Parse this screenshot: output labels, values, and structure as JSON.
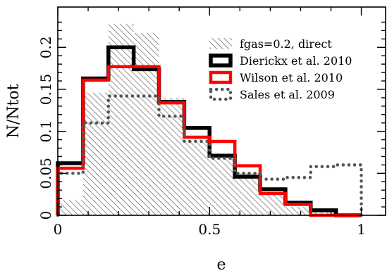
{
  "chart_data": {
    "type": "histogram",
    "xlabel": "e",
    "ylabel": "N/Ntot",
    "xlim": [
      0,
      1.08
    ],
    "ylim": [
      0,
      0.248
    ],
    "x_ticks": [
      {
        "value": 0,
        "label": "0"
      },
      {
        "value": 0.5,
        "label": "0.5"
      },
      {
        "value": 1,
        "label": "1"
      }
    ],
    "y_ticks": [
      {
        "value": 0,
        "label": "0"
      },
      {
        "value": 0.05,
        "label": "0.05"
      },
      {
        "value": 0.1,
        "label": "0.1"
      },
      {
        "value": 0.15,
        "label": "0.15"
      },
      {
        "value": 0.2,
        "label": "0.2"
      }
    ],
    "bin_edges": [
      0,
      0.0833,
      0.1667,
      0.25,
      0.3333,
      0.4167,
      0.5,
      0.5833,
      0.6667,
      0.75,
      0.8333,
      0.9167,
      1.0
    ],
    "legend_position": "top-right",
    "series": [
      {
        "name": "fgas=0.2, direct",
        "style": "hatched",
        "color": "#555555",
        "values": [
          0.018,
          0.146,
          0.228,
          0.217,
          0.14,
          0.09,
          0.071,
          0.05,
          0.025,
          0.01,
          0.004,
          0.0
        ]
      },
      {
        "name": "Dierickx et al. 2010",
        "style": "step",
        "color": "#000000",
        "values": [
          0.062,
          0.163,
          0.2,
          0.174,
          0.135,
          0.104,
          0.071,
          0.046,
          0.031,
          0.015,
          0.006,
          0.0
        ]
      },
      {
        "name": "Wilson et al. 2010",
        "style": "step",
        "color": "#ff0000",
        "values": [
          0.056,
          0.161,
          0.177,
          0.177,
          0.134,
          0.093,
          0.088,
          0.059,
          0.026,
          0.013,
          0.0,
          0.0
        ]
      },
      {
        "name": "Sales et al. 2009",
        "style": "dotted-step",
        "color": "#555555",
        "values": [
          0.05,
          0.11,
          0.142,
          0.142,
          0.118,
          0.088,
          0.068,
          0.05,
          0.043,
          0.045,
          0.058,
          0.06
        ]
      }
    ]
  }
}
